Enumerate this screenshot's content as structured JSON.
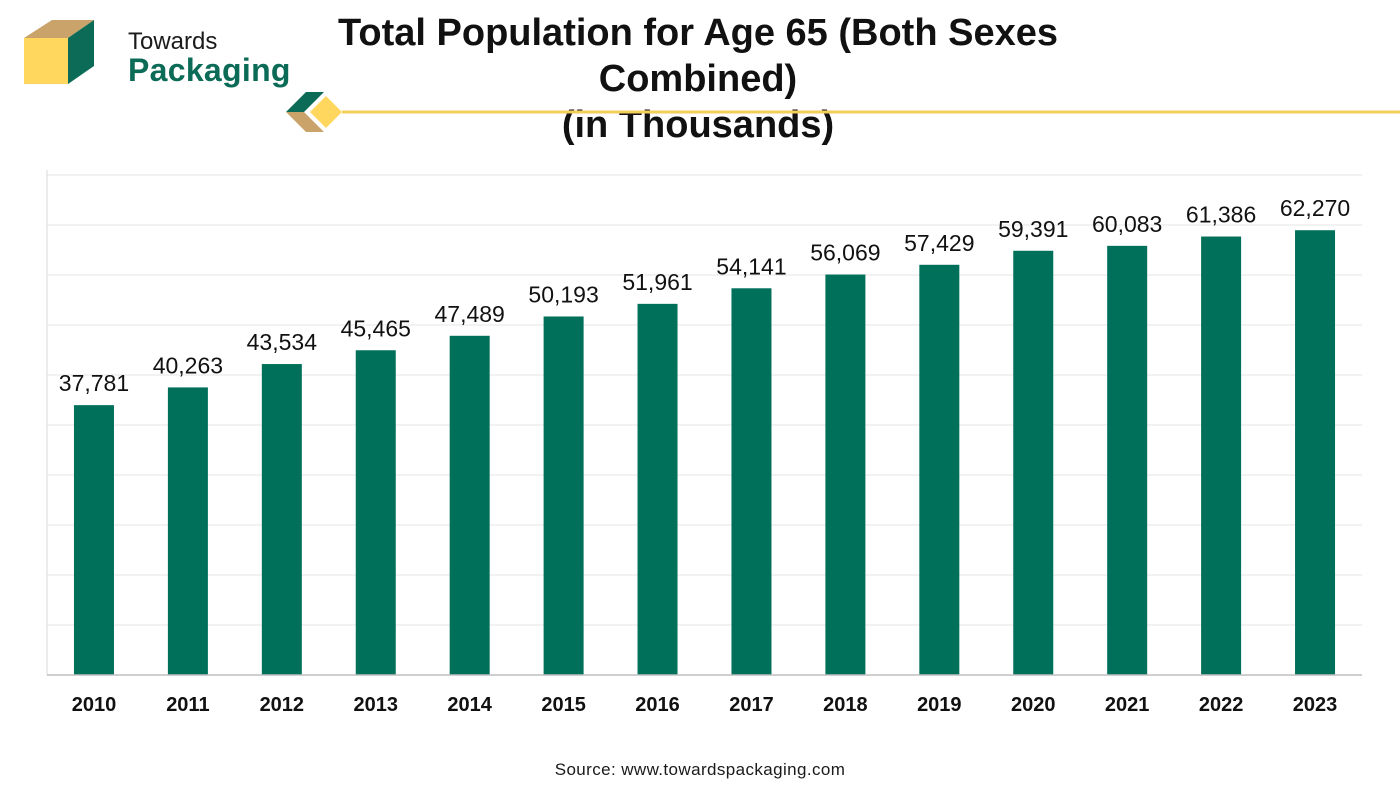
{
  "brand": {
    "line1": "Towards",
    "line2": "Packaging",
    "colors": {
      "green": "#0b6b57",
      "tan": "#c9a36a",
      "yellow": "#ffd75e"
    }
  },
  "source": "Source: www.towardspackaging.com",
  "chart_data": {
    "type": "bar",
    "title": "Total Population for Age 65 (Both Sexes Combined)",
    "subtitle": "(in Thousands)",
    "categories": [
      "2010",
      "2011",
      "2012",
      "2013",
      "2014",
      "2015",
      "2016",
      "2017",
      "2018",
      "2019",
      "2020",
      "2021",
      "2022",
      "2023"
    ],
    "values": [
      37781,
      40263,
      43534,
      45465,
      47489,
      50193,
      51961,
      54141,
      56069,
      57429,
      59391,
      60083,
      61386,
      62270
    ],
    "value_labels": [
      "37,781",
      "40,263",
      "43,534",
      "45,465",
      "47,489",
      "50,193",
      "51,961",
      "54,141",
      "56,069",
      "57,429",
      "59,391",
      "60,083",
      "61,386",
      "62,270"
    ],
    "xlabel": "",
    "ylabel": "",
    "ylim": [
      0,
      70000
    ],
    "y_tick_step": 7000,
    "y_tick_labels_shown": false,
    "grid": true,
    "legend": "none",
    "bar_color": "#00705a"
  }
}
